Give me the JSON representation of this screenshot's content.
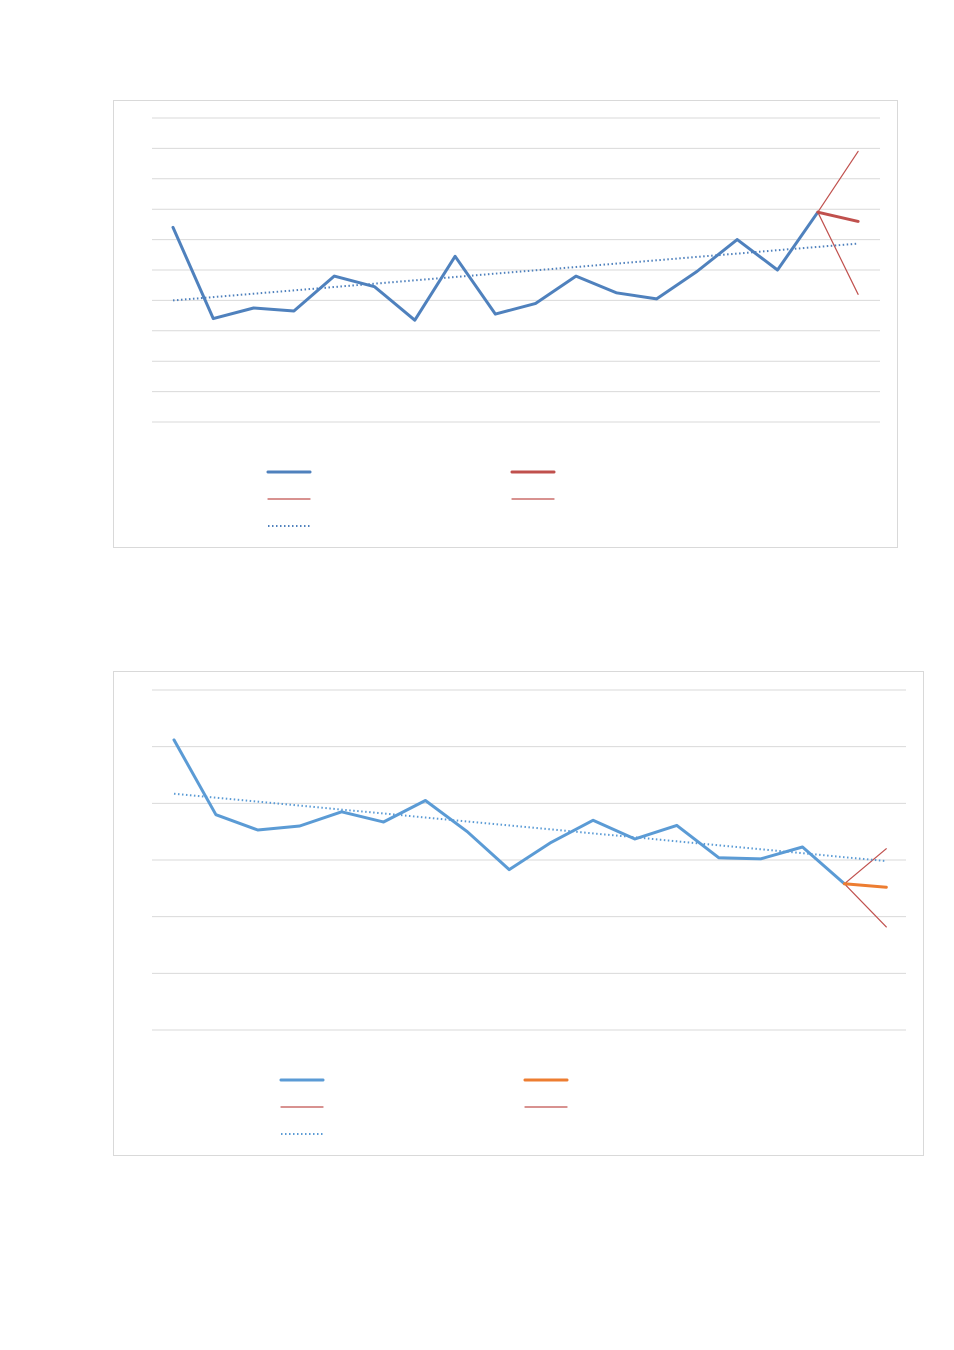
{
  "charts": [
    {
      "type": "line",
      "title": "",
      "xlabel": "",
      "ylabel": "",
      "ylim": [
        0,
        10
      ],
      "gridlines": 11,
      "grid": true,
      "legend_placement": "bottom",
      "x": [
        1,
        2,
        3,
        4,
        5,
        6,
        7,
        8,
        9,
        10,
        11,
        12,
        13,
        14,
        15,
        16,
        17,
        18
      ],
      "series": [
        {
          "values": [
            6.4,
            3.4,
            3.75,
            3.65,
            4.8,
            4.45,
            3.35,
            5.45,
            3.55,
            3.9,
            4.8,
            4.25,
            4.05,
            4.95,
            6.0,
            5.0,
            6.9,
            null
          ],
          "color": "#4f81bd",
          "style": "solid"
        },
        {
          "values": [
            null,
            null,
            null,
            null,
            null,
            null,
            null,
            null,
            null,
            null,
            null,
            null,
            null,
            null,
            null,
            null,
            6.9,
            6.6
          ],
          "color": "#c0504d",
          "style": "solid-thick"
        },
        {
          "values": [
            null,
            null,
            null,
            null,
            null,
            null,
            null,
            null,
            null,
            null,
            null,
            null,
            null,
            null,
            null,
            null,
            6.9,
            4.2
          ],
          "color": "#c0504d",
          "style": "solid-thin"
        },
        {
          "values": [
            null,
            null,
            null,
            null,
            null,
            null,
            null,
            null,
            null,
            null,
            null,
            null,
            null,
            null,
            null,
            null,
            6.9,
            8.9
          ],
          "color": "#c0504d",
          "style": "solid-thin"
        },
        {
          "values": [
            4.0,
            4.11,
            4.22,
            4.33,
            4.44,
            4.55,
            4.66,
            4.77,
            4.88,
            4.99,
            5.1,
            5.21,
            5.32,
            5.43,
            5.54,
            5.65,
            5.76,
            5.87
          ],
          "color": "#4f81bd",
          "style": "dotted"
        }
      ],
      "legend": [
        {
          "series": 0,
          "color": "#4f81bd",
          "style": "solid"
        },
        {
          "series": 1,
          "color": "#c0504d",
          "style": "solid-thick"
        },
        {
          "series": 2,
          "color": "#c0504d",
          "style": "solid-thin"
        },
        {
          "series": 3,
          "color": "#c0504d",
          "style": "solid-thin"
        },
        {
          "series": 4,
          "color": "#4f81bd",
          "style": "dotted"
        }
      ]
    },
    {
      "type": "line",
      "title": "",
      "xlabel": "",
      "ylabel": "",
      "ylim": [
        0,
        6
      ],
      "gridlines": 7,
      "grid": true,
      "legend_placement": "bottom",
      "x": [
        1,
        2,
        3,
        4,
        5,
        6,
        7,
        8,
        9,
        10,
        11,
        12,
        13,
        14,
        15,
        16,
        17,
        18
      ],
      "series": [
        {
          "values": [
            5.12,
            3.8,
            3.53,
            3.6,
            3.85,
            3.67,
            4.05,
            3.5,
            2.83,
            3.31,
            3.7,
            3.37,
            3.61,
            3.04,
            3.02,
            3.23,
            2.58,
            null
          ],
          "color": "#5b9bd5",
          "style": "solid"
        },
        {
          "values": [
            null,
            null,
            null,
            null,
            null,
            null,
            null,
            null,
            null,
            null,
            null,
            null,
            null,
            null,
            null,
            null,
            2.58,
            2.52
          ],
          "color": "#ed7d31",
          "style": "solid-thick"
        },
        {
          "values": [
            null,
            null,
            null,
            null,
            null,
            null,
            null,
            null,
            null,
            null,
            null,
            null,
            null,
            null,
            null,
            null,
            2.58,
            1.82
          ],
          "color": "#c0504d",
          "style": "solid-thin"
        },
        {
          "values": [
            null,
            null,
            null,
            null,
            null,
            null,
            null,
            null,
            null,
            null,
            null,
            null,
            null,
            null,
            null,
            null,
            2.58,
            3.2
          ],
          "color": "#c0504d",
          "style": "solid-thin"
        },
        {
          "values": [
            4.17,
            4.1,
            4.03,
            3.96,
            3.89,
            3.82,
            3.75,
            3.68,
            3.61,
            3.54,
            3.47,
            3.4,
            3.33,
            3.26,
            3.19,
            3.12,
            3.05,
            2.98
          ],
          "color": "#5b9bd5",
          "style": "dotted"
        }
      ],
      "legend": [
        {
          "series": 0,
          "color": "#5b9bd5",
          "style": "solid"
        },
        {
          "series": 1,
          "color": "#ed7d31",
          "style": "solid-thick"
        },
        {
          "series": 2,
          "color": "#c0504d",
          "style": "solid-thin"
        },
        {
          "series": 3,
          "color": "#c0504d",
          "style": "solid-thin"
        },
        {
          "series": 4,
          "color": "#5b9bd5",
          "style": "dotted"
        }
      ]
    }
  ],
  "chart_data": [
    {
      "type": "line",
      "x": [
        1,
        2,
        3,
        4,
        5,
        6,
        7,
        8,
        9,
        10,
        11,
        12,
        13,
        14,
        15,
        16,
        17,
        18
      ],
      "ylim": [
        0,
        10
      ],
      "series": [
        {
          "values": [
            6.4,
            3.4,
            3.75,
            3.65,
            4.8,
            4.45,
            3.35,
            5.45,
            3.55,
            3.9,
            4.8,
            4.25,
            4.05,
            4.95,
            6.0,
            5.0,
            6.9,
            null
          ]
        },
        {
          "values": [
            null,
            null,
            null,
            null,
            null,
            null,
            null,
            null,
            null,
            null,
            null,
            null,
            null,
            null,
            null,
            null,
            6.9,
            6.6
          ]
        },
        {
          "values": [
            null,
            null,
            null,
            null,
            null,
            null,
            null,
            null,
            null,
            null,
            null,
            null,
            null,
            null,
            null,
            null,
            6.9,
            4.2
          ]
        },
        {
          "values": [
            null,
            null,
            null,
            null,
            null,
            null,
            null,
            null,
            null,
            null,
            null,
            null,
            null,
            null,
            null,
            null,
            6.9,
            8.9
          ]
        },
        {
          "values": [
            4.0,
            4.11,
            4.22,
            4.33,
            4.44,
            4.55,
            4.66,
            4.77,
            4.88,
            4.99,
            5.1,
            5.21,
            5.32,
            5.43,
            5.54,
            5.65,
            5.76,
            5.87
          ]
        }
      ]
    },
    {
      "type": "line",
      "x": [
        1,
        2,
        3,
        4,
        5,
        6,
        7,
        8,
        9,
        10,
        11,
        12,
        13,
        14,
        15,
        16,
        17,
        18
      ],
      "ylim": [
        0,
        6
      ],
      "series": [
        {
          "values": [
            5.12,
            3.8,
            3.53,
            3.6,
            3.85,
            3.67,
            4.05,
            3.5,
            2.83,
            3.31,
            3.7,
            3.37,
            3.61,
            3.04,
            3.02,
            3.23,
            2.58,
            null
          ]
        },
        {
          "values": [
            null,
            null,
            null,
            null,
            null,
            null,
            null,
            null,
            null,
            null,
            null,
            null,
            null,
            null,
            null,
            null,
            2.58,
            2.52
          ]
        },
        {
          "values": [
            null,
            null,
            null,
            null,
            null,
            null,
            null,
            null,
            null,
            null,
            null,
            null,
            null,
            null,
            null,
            null,
            2.58,
            1.82
          ]
        },
        {
          "values": [
            null,
            null,
            null,
            null,
            null,
            null,
            null,
            null,
            null,
            null,
            null,
            null,
            null,
            null,
            null,
            null,
            2.58,
            3.2
          ]
        },
        {
          "values": [
            4.17,
            4.1,
            4.03,
            3.96,
            3.89,
            3.82,
            3.75,
            3.68,
            3.61,
            3.54,
            3.47,
            3.4,
            3.33,
            3.26,
            3.19,
            3.12,
            3.05,
            2.98
          ]
        }
      ]
    }
  ]
}
